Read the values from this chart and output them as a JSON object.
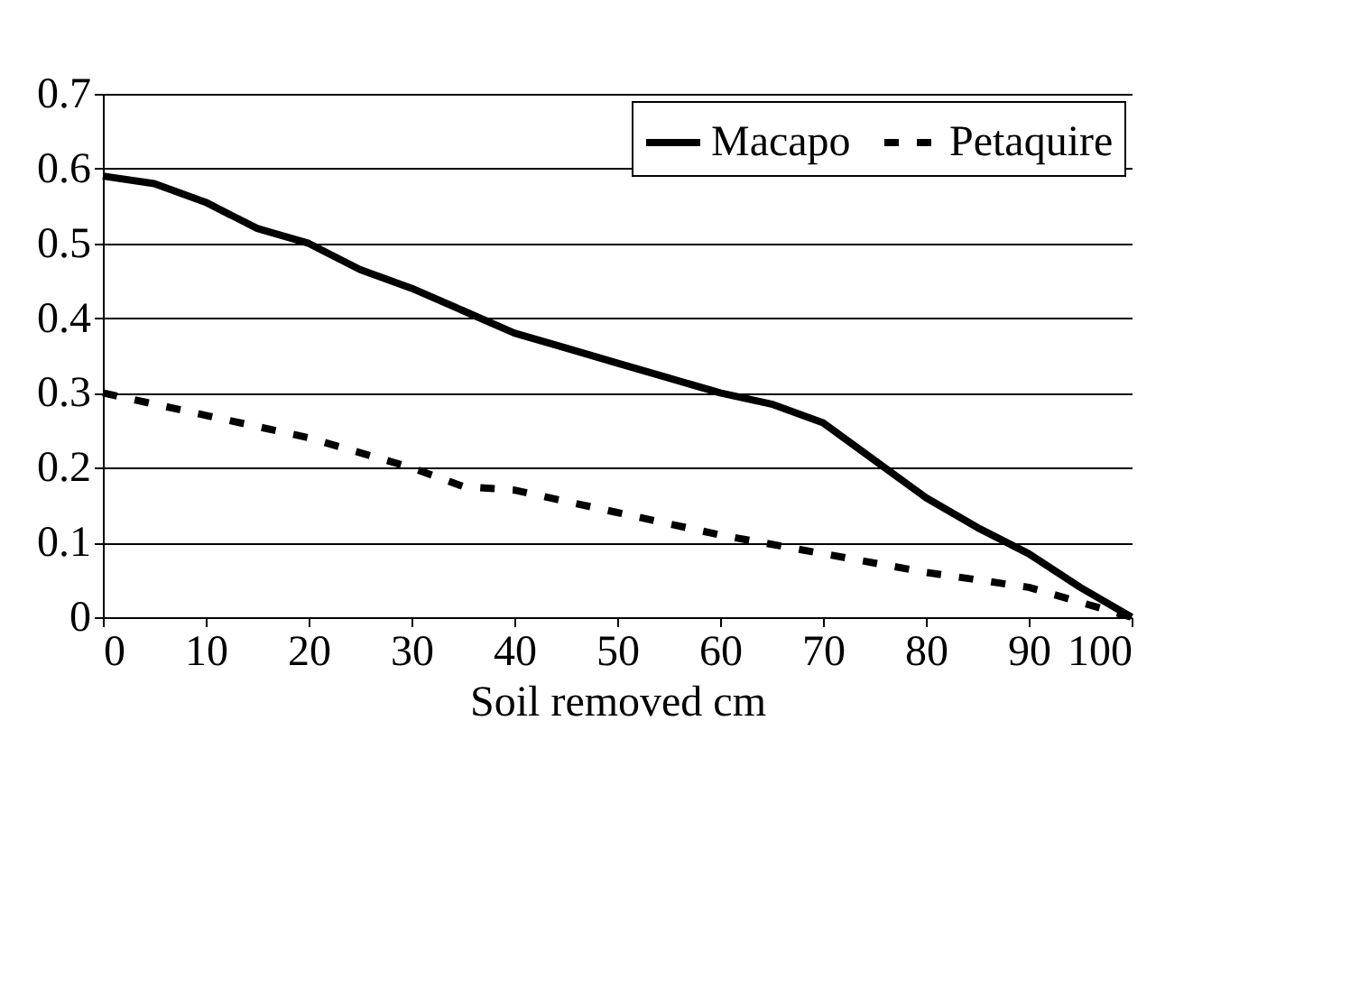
{
  "chart_data": {
    "type": "line",
    "xlabel": "Soil removed cm",
    "xlim": [
      0,
      100
    ],
    "xticks": [
      0,
      10,
      20,
      30,
      40,
      50,
      60,
      70,
      80,
      90,
      100
    ],
    "ylim": [
      0,
      0.7
    ],
    "yticks": [
      0,
      0.1,
      0.2,
      0.3,
      0.4,
      0.5,
      0.6,
      0.7
    ],
    "grid": "y",
    "legend": "top right",
    "marker": "none",
    "series": [
      {
        "name": "Macapo",
        "color": "#000000",
        "line_style": "solid",
        "x": [
          0,
          5,
          10,
          15,
          20,
          25,
          30,
          35,
          40,
          45,
          50,
          55,
          60,
          65,
          70,
          75,
          80,
          85,
          90,
          95,
          100
        ],
        "values": [
          0.59,
          0.58,
          0.555,
          0.52,
          0.5,
          0.465,
          0.44,
          0.41,
          0.38,
          0.36,
          0.34,
          0.32,
          0.3,
          0.285,
          0.26,
          0.21,
          0.16,
          0.12,
          0.085,
          0.04,
          0
        ]
      },
      {
        "name": "Petaquire",
        "color": "#000000",
        "line_style": "dashed",
        "x": [
          0,
          10,
          20,
          30,
          35,
          40,
          50,
          60,
          70,
          80,
          90,
          100
        ],
        "values": [
          0.3,
          0.27,
          0.24,
          0.2,
          0.175,
          0.17,
          0.14,
          0.11,
          0.085,
          0.06,
          0.04,
          0
        ]
      }
    ]
  }
}
